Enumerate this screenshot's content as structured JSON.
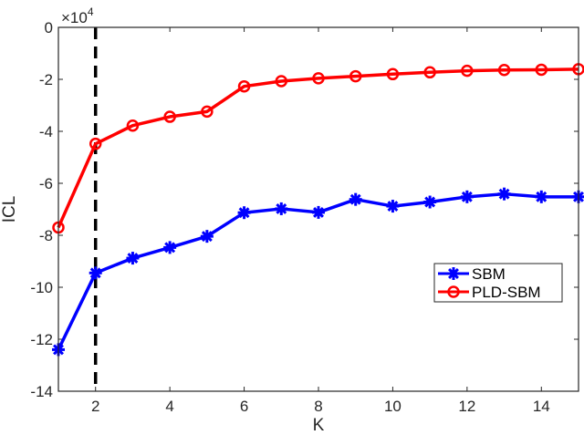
{
  "chart_data": {
    "type": "line",
    "title": "",
    "xlabel": "K",
    "ylabel": "ICL",
    "y_multiplier": "×10^4",
    "y_multiplier_base": "×10",
    "y_multiplier_exp": "4",
    "xlim": [
      1,
      15
    ],
    "ylim": [
      -14,
      0
    ],
    "grid": false,
    "legend_position": "right-middle",
    "x": [
      1,
      2,
      3,
      4,
      5,
      6,
      7,
      8,
      9,
      10,
      11,
      12,
      13,
      14,
      15
    ],
    "x_ticks": [
      "2",
      "4",
      "6",
      "8",
      "10",
      "12",
      "14"
    ],
    "y_ticks": [
      "0",
      "-2",
      "-4",
      "-6",
      "-8",
      "-10",
      "-12",
      "-14"
    ],
    "vertical_dashed_line_at": 2,
    "series": [
      {
        "name": "SBM",
        "color": "#0000ff",
        "marker": "asterisk",
        "values": [
          -12.4,
          -9.45,
          -8.88,
          -8.47,
          -8.04,
          -7.13,
          -6.98,
          -7.12,
          -6.62,
          -6.88,
          -6.72,
          -6.52,
          -6.41,
          -6.52,
          -6.52
        ]
      },
      {
        "name": "PLD-SBM",
        "color": "#ff0000",
        "marker": "circle",
        "values": [
          -7.7,
          -4.48,
          -3.78,
          -3.44,
          -3.24,
          -2.27,
          -2.07,
          -1.96,
          -1.88,
          -1.8,
          -1.73,
          -1.67,
          -1.64,
          -1.63,
          -1.61
        ]
      }
    ],
    "legend": [
      "SBM",
      "PLD-SBM"
    ]
  }
}
